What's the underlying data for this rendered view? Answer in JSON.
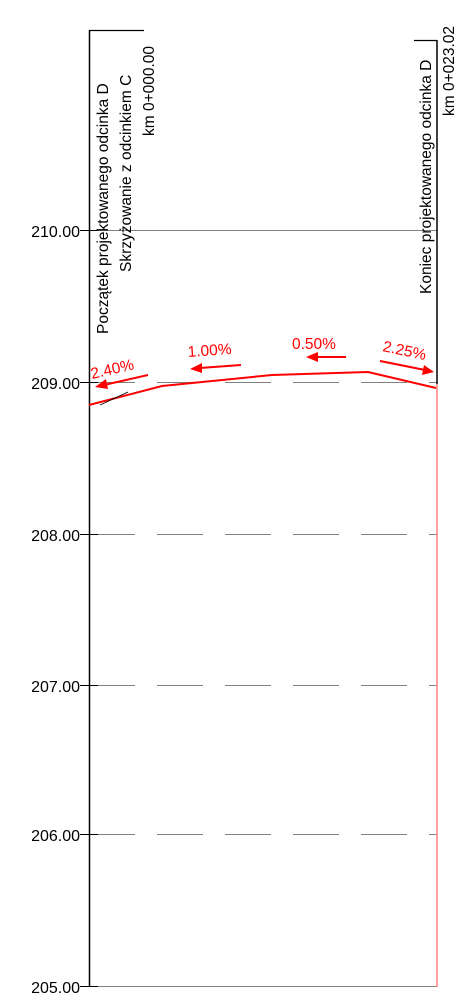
{
  "profile": {
    "elevation_labels": [
      "210.00",
      "209.00",
      "208.00",
      "207.00",
      "206.00",
      "205.00"
    ],
    "start_annotation": {
      "line1": "Początek projektowanego odcinka D",
      "line2": "Skrzyżowanie z odcinkiem C",
      "line3": "km 0+000.00"
    },
    "end_annotation": {
      "line1": "Koniec projektowanego odcinka D",
      "line2": "km 0+023.02"
    },
    "slopes": [
      "2.40%",
      "1.00%",
      "0.50%",
      "2.25%"
    ],
    "elevations": {
      "min": 205.0,
      "max": 210.0
    },
    "colors": {
      "axis": "#000000",
      "grid": "#808080",
      "profile": "#ff0000",
      "end_line": "#ff8080"
    }
  }
}
